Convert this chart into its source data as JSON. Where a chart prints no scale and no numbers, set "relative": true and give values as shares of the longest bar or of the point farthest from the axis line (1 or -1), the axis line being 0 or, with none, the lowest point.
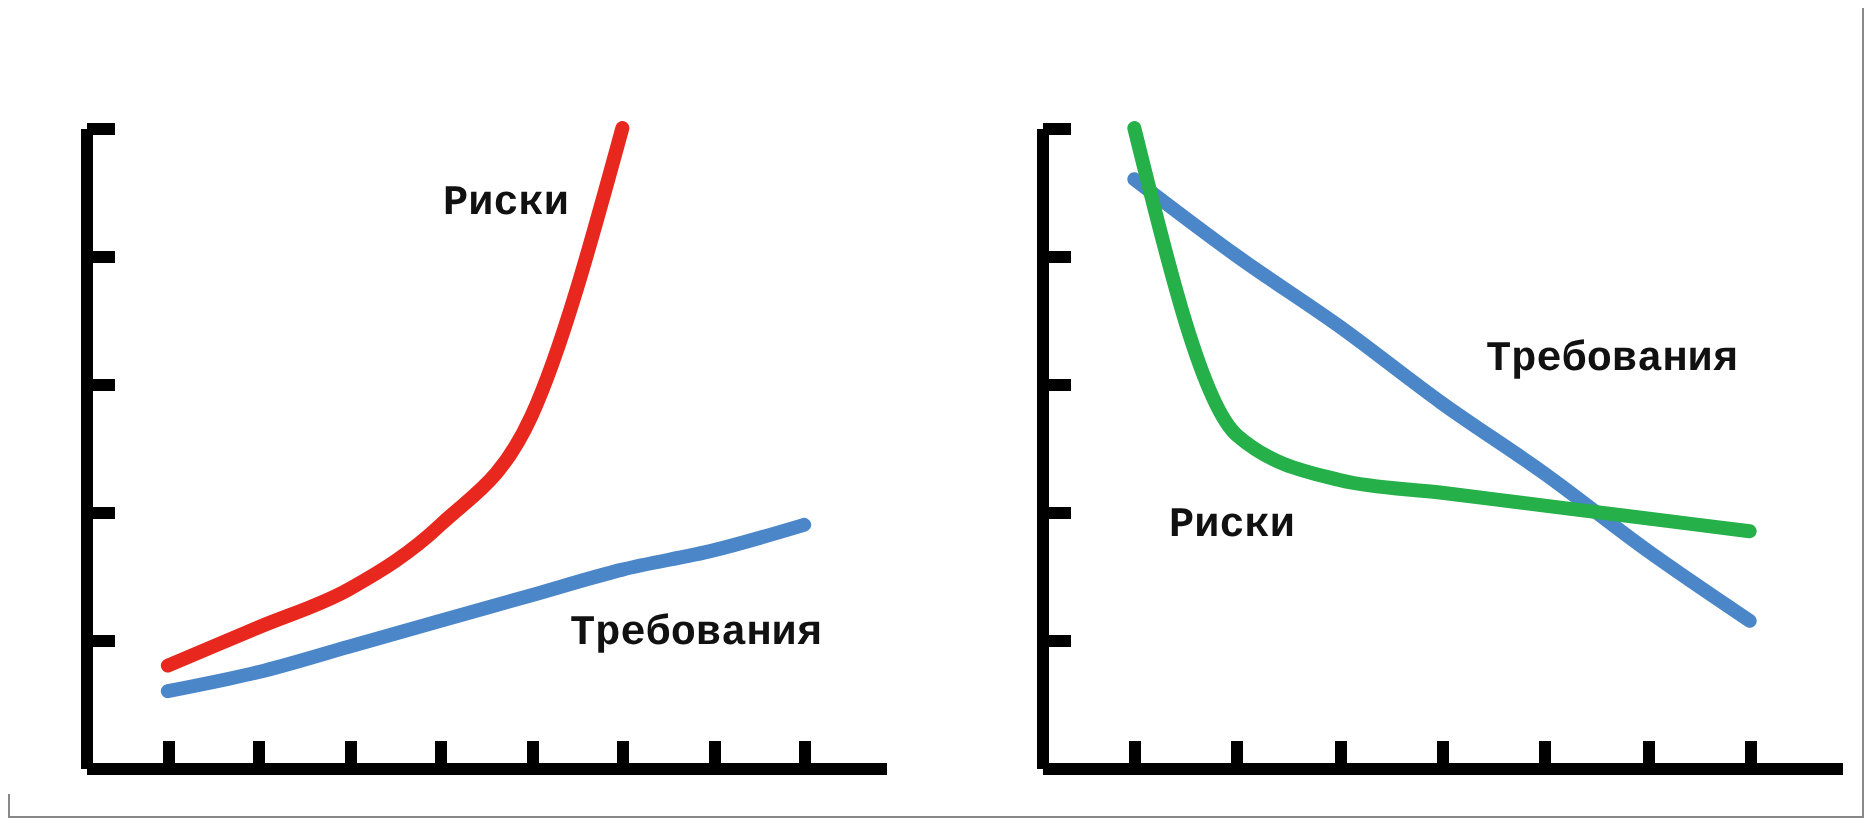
{
  "chart_data": [
    {
      "type": "line",
      "relative": true,
      "categories": [
        null,
        null,
        null,
        null,
        null,
        null,
        null,
        null
      ],
      "series": [
        {
          "name": "Риски",
          "color": "#e8281e",
          "values": [
            0.16,
            0.22,
            0.28,
            0.38,
            0.55,
            1.0,
            null,
            null
          ]
        },
        {
          "name": "Требования",
          "color": "#4a86c8",
          "values": [
            0.12,
            0.15,
            0.19,
            0.23,
            0.27,
            0.31,
            0.34,
            0.38
          ]
        }
      ]
    },
    {
      "type": "line",
      "relative": true,
      "categories": [
        null,
        null,
        null,
        null,
        null,
        null,
        null
      ],
      "series": [
        {
          "name": "Требования",
          "color": "#4a86c8",
          "values": [
            0.92,
            0.8,
            0.69,
            0.57,
            0.46,
            0.34,
            0.23
          ]
        },
        {
          "name": "Риски",
          "color": "#25b04a",
          "values": [
            1.0,
            0.52,
            0.45,
            0.43,
            0.41,
            0.39,
            0.37
          ]
        }
      ]
    }
  ]
}
